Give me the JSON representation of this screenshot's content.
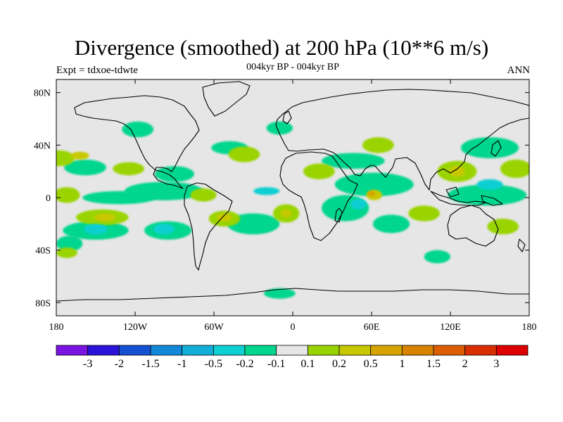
{
  "title": "Divergence (smoothed) at 200 hPa (10**6 m/s)",
  "left_label": "Expt = tdxoe-tdwte",
  "center_label": "004kyr BP - 004kyr BP",
  "right_label": "ANN",
  "lat_ticks": [
    {
      "value": 80,
      "label": "80N"
    },
    {
      "value": 40,
      "label": "40N"
    },
    {
      "value": 0,
      "label": "0"
    },
    {
      "value": -40,
      "label": "40S"
    },
    {
      "value": -80,
      "label": "80S"
    }
  ],
  "lon_ticks": [
    {
      "value": -180,
      "label": "180"
    },
    {
      "value": -120,
      "label": "120W"
    },
    {
      "value": -60,
      "label": "60W"
    },
    {
      "value": 0,
      "label": "0"
    },
    {
      "value": 60,
      "label": "60E"
    },
    {
      "value": 120,
      "label": "120E"
    },
    {
      "value": 180,
      "label": "180"
    }
  ],
  "colorbar": {
    "colors": [
      "#7a14e0",
      "#2a12d8",
      "#1450d2",
      "#1288d8",
      "#10aed8",
      "#0ecfd2",
      "#00d68e",
      "#e6e6e6",
      "#9ad400",
      "#c8c800",
      "#d6a400",
      "#d88400",
      "#dc5e00",
      "#d82e00",
      "#de0000"
    ],
    "labels": [
      "-3",
      "-2",
      "-1.5",
      "-1",
      "-0.5",
      "-0.2",
      "-0.1",
      "0.1",
      "0.2",
      "0.5",
      "1",
      "1.5",
      "2",
      "3"
    ]
  },
  "map": {
    "background_color": "#e6e6e6",
    "regions": [
      {
        "level": -0.15,
        "lon": -158,
        "lat": 23,
        "rx": 16,
        "ry": 6
      },
      {
        "level": -0.15,
        "lon": -132,
        "lat": 0,
        "rx": 28,
        "ry": 5
      },
      {
        "level": -0.15,
        "lon": -98,
        "lat": 5,
        "rx": 30,
        "ry": 7
      },
      {
        "level": -0.15,
        "lon": -118,
        "lat": 52,
        "rx": 12,
        "ry": 6
      },
      {
        "level": -0.15,
        "lon": -48,
        "lat": 38,
        "rx": 14,
        "ry": 5
      },
      {
        "level": -0.15,
        "lon": -10,
        "lat": 53,
        "rx": 10,
        "ry": 5
      },
      {
        "level": -0.15,
        "lon": -90,
        "lat": 18,
        "rx": 15,
        "ry": 6
      },
      {
        "level": -0.15,
        "lon": 46,
        "lat": 28,
        "rx": 24,
        "ry": 6
      },
      {
        "level": -0.15,
        "lon": 62,
        "lat": 10,
        "rx": 30,
        "ry": 9
      },
      {
        "level": -0.15,
        "lon": 150,
        "lat": 38,
        "rx": 22,
        "ry": 8
      },
      {
        "level": -0.15,
        "lon": 148,
        "lat": 2,
        "rx": 30,
        "ry": 8
      },
      {
        "level": -0.15,
        "lon": -150,
        "lat": -25,
        "rx": 25,
        "ry": 7
      },
      {
        "level": -0.15,
        "lon": -95,
        "lat": -25,
        "rx": 18,
        "ry": 7
      },
      {
        "level": -0.15,
        "lon": -30,
        "lat": -20,
        "rx": 20,
        "ry": 8
      },
      {
        "level": -0.15,
        "lon": 40,
        "lat": -8,
        "rx": 18,
        "ry": 10
      },
      {
        "level": -0.15,
        "lon": 75,
        "lat": -20,
        "rx": 14,
        "ry": 7
      },
      {
        "level": -0.15,
        "lon": 110,
        "lat": -45,
        "rx": 10,
        "ry": 5
      },
      {
        "level": -0.15,
        "lon": -170,
        "lat": -35,
        "rx": 10,
        "ry": 6
      },
      {
        "level": -0.15,
        "lon": -10,
        "lat": -73,
        "rx": 12,
        "ry": 4
      },
      {
        "level": -0.4,
        "lon": -150,
        "lat": -24,
        "rx": 9,
        "ry": 4
      },
      {
        "level": -0.4,
        "lon": -98,
        "lat": -24,
        "rx": 8,
        "ry": 4
      },
      {
        "level": -0.4,
        "lon": -20,
        "lat": 5,
        "rx": 10,
        "ry": 3
      },
      {
        "level": -0.4,
        "lon": 50,
        "lat": -5,
        "rx": 6,
        "ry": 4
      },
      {
        "level": -0.4,
        "lon": 150,
        "lat": 10,
        "rx": 10,
        "ry": 4
      },
      {
        "level": 0.15,
        "lon": -178,
        "lat": 30,
        "rx": 12,
        "ry": 6
      },
      {
        "level": 0.15,
        "lon": -172,
        "lat": 2,
        "rx": 10,
        "ry": 6
      },
      {
        "level": 0.15,
        "lon": -145,
        "lat": -15,
        "rx": 20,
        "ry": 6
      },
      {
        "level": 0.15,
        "lon": -125,
        "lat": 22,
        "rx": 12,
        "ry": 5
      },
      {
        "level": 0.15,
        "lon": -68,
        "lat": 2,
        "rx": 10,
        "ry": 5
      },
      {
        "level": 0.15,
        "lon": -52,
        "lat": -16,
        "rx": 12,
        "ry": 6
      },
      {
        "level": 0.15,
        "lon": -37,
        "lat": 33,
        "rx": 12,
        "ry": 6
      },
      {
        "level": 0.15,
        "lon": -5,
        "lat": -12,
        "rx": 10,
        "ry": 7
      },
      {
        "level": 0.15,
        "lon": 20,
        "lat": 20,
        "rx": 12,
        "ry": 6
      },
      {
        "level": 0.15,
        "lon": 65,
        "lat": 40,
        "rx": 12,
        "ry": 6
      },
      {
        "level": 0.15,
        "lon": 125,
        "lat": 20,
        "rx": 15,
        "ry": 8
      },
      {
        "level": 0.15,
        "lon": 170,
        "lat": 22,
        "rx": 12,
        "ry": 7
      },
      {
        "level": 0.15,
        "lon": 100,
        "lat": -12,
        "rx": 12,
        "ry": 6
      },
      {
        "level": 0.15,
        "lon": 160,
        "lat": -22,
        "rx": 12,
        "ry": 6
      },
      {
        "level": 0.15,
        "lon": -172,
        "lat": -42,
        "rx": 8,
        "ry": 4
      },
      {
        "level": 0.35,
        "lon": -162,
        "lat": 32,
        "rx": 7,
        "ry": 3
      },
      {
        "level": 0.35,
        "lon": -143,
        "lat": -15,
        "rx": 8,
        "ry": 3
      },
      {
        "level": 0.35,
        "lon": -52,
        "lat": -15,
        "rx": 6,
        "ry": 3
      },
      {
        "level": 0.35,
        "lon": -5,
        "lat": -12,
        "rx": 4,
        "ry": 3
      },
      {
        "level": 0.35,
        "lon": 62,
        "lat": 2,
        "rx": 6,
        "ry": 4
      },
      {
        "level": 0.35,
        "lon": 125,
        "lat": 20,
        "rx": 6,
        "ry": 4
      },
      {
        "level": 0.75,
        "lon": 60,
        "lat": 3,
        "rx": 3,
        "ry": 2
      }
    ]
  }
}
